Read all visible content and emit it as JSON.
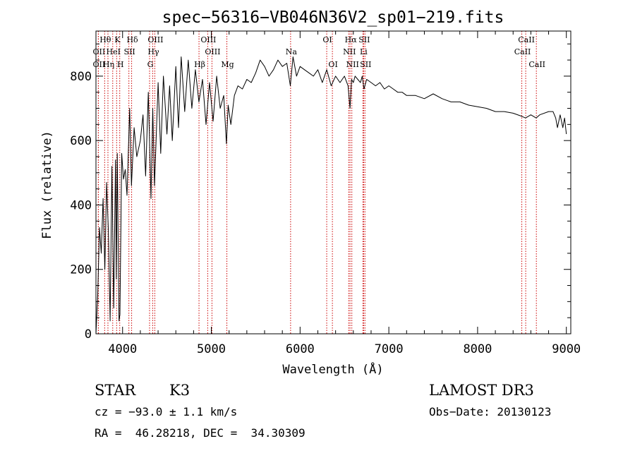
{
  "chart_data": {
    "type": "line",
    "title": "spec−56316−VB046N36V2_sp01−219.fits",
    "xlabel": "Wavelength (Å)",
    "ylabel": "Flux (relative)",
    "xlim": [
      3700,
      9050
    ],
    "ylim": [
      0,
      940
    ],
    "xticks": [
      {
        "value": 4000,
        "label": "4000"
      },
      {
        "value": 5000,
        "label": "5000"
      },
      {
        "value": 6000,
        "label": "6000"
      },
      {
        "value": 7000,
        "label": "7000"
      },
      {
        "value": 8000,
        "label": "8000"
      },
      {
        "value": 9000,
        "label": "9000"
      }
    ],
    "yticks": [
      {
        "value": 0,
        "label": "0"
      },
      {
        "value": 200,
        "label": "200"
      },
      {
        "value": 400,
        "label": "400"
      },
      {
        "value": 600,
        "label": "600"
      },
      {
        "value": 800,
        "label": "800"
      }
    ],
    "grid": false,
    "series": [
      {
        "name": "flux",
        "x": [
          3700,
          3720,
          3740,
          3760,
          3780,
          3800,
          3820,
          3840,
          3860,
          3880,
          3900,
          3920,
          3930,
          3940,
          3960,
          3970,
          3990,
          4010,
          4030,
          4050,
          4080,
          4100,
          4130,
          4160,
          4200,
          4230,
          4260,
          4290,
          4320,
          4340,
          4360,
          4400,
          4430,
          4460,
          4500,
          4530,
          4560,
          4600,
          4630,
          4660,
          4700,
          4740,
          4780,
          4820,
          4860,
          4900,
          4940,
          4980,
          5020,
          5060,
          5100,
          5140,
          5170,
          5190,
          5220,
          5260,
          5300,
          5350,
          5400,
          5450,
          5500,
          5550,
          5600,
          5650,
          5700,
          5750,
          5800,
          5850,
          5890,
          5920,
          5960,
          6000,
          6050,
          6100,
          6150,
          6200,
          6250,
          6300,
          6350,
          6400,
          6450,
          6500,
          6540,
          6563,
          6580,
          6600,
          6620,
          6650,
          6680,
          6700,
          6720,
          6750,
          6800,
          6850,
          6900,
          6950,
          7000,
          7050,
          7100,
          7150,
          7200,
          7300,
          7400,
          7500,
          7600,
          7700,
          7800,
          7900,
          8000,
          8100,
          8200,
          8300,
          8400,
          8500,
          8540,
          8600,
          8660,
          8700,
          8800,
          8850,
          8880,
          8900,
          8930,
          8960,
          8980,
          9000
        ],
        "y": [
          0,
          120,
          330,
          250,
          420,
          200,
          470,
          320,
          40,
          520,
          80,
          540,
          170,
          560,
          40,
          60,
          560,
          480,
          510,
          430,
          700,
          460,
          640,
          550,
          600,
          680,
          490,
          750,
          420,
          700,
          460,
          780,
          560,
          800,
          620,
          770,
          600,
          830,
          640,
          860,
          690,
          850,
          700,
          820,
          720,
          790,
          650,
          780,
          660,
          800,
          700,
          740,
          590,
          710,
          650,
          740,
          770,
          760,
          790,
          780,
          810,
          850,
          830,
          800,
          820,
          850,
          830,
          840,
          770,
          860,
          800,
          830,
          820,
          810,
          800,
          820,
          780,
          820,
          770,
          800,
          780,
          800,
          770,
          700,
          790,
          780,
          800,
          790,
          780,
          800,
          760,
          790,
          780,
          770,
          780,
          760,
          770,
          760,
          750,
          750,
          740,
          740,
          730,
          745,
          730,
          720,
          720,
          710,
          705,
          700,
          690,
          690,
          685,
          675,
          670,
          680,
          670,
          680,
          690,
          690,
          670,
          640,
          680,
          640,
          670,
          620
        ]
      }
    ],
    "spectral_lines": [
      {
        "label": "Hθ",
        "wavelength": 3798,
        "row": 0
      },
      {
        "label": "OII",
        "wavelength": 3727,
        "row": 1
      },
      {
        "label": "OII",
        "wavelength": 3727,
        "row": 2
      },
      {
        "label": "Hη",
        "wavelength": 3835,
        "row": 2
      },
      {
        "label": "HeI",
        "wavelength": 3889,
        "row": 1
      },
      {
        "label": "K",
        "wavelength": 3933,
        "row": 0
      },
      {
        "label": "H",
        "wavelength": 3968,
        "row": 2
      },
      {
        "label": "SII",
        "wavelength": 4071,
        "row": 1
      },
      {
        "label": "Hδ",
        "wavelength": 4102,
        "row": 0
      },
      {
        "label": "OIII",
        "wavelength": 4363,
        "row": 0
      },
      {
        "label": "Hγ",
        "wavelength": 4340,
        "row": 1
      },
      {
        "label": "G",
        "wavelength": 4304,
        "row": 2
      },
      {
        "label": "OIII",
        "wavelength": 4959,
        "row": 0
      },
      {
        "label": "OIII",
        "wavelength": 5007,
        "row": 1
      },
      {
        "label": "Hβ",
        "wavelength": 4861,
        "row": 2
      },
      {
        "label": "Mg",
        "wavelength": 5175,
        "row": 2
      },
      {
        "label": "Na",
        "wavelength": 5893,
        "row": 1
      },
      {
        "label": "OI",
        "wavelength": 6300,
        "row": 0
      },
      {
        "label": "OI",
        "wavelength": 6364,
        "row": 2
      },
      {
        "label": "Hα",
        "wavelength": 6563,
        "row": 0
      },
      {
        "label": "SII",
        "wavelength": 6716,
        "row": 0
      },
      {
        "label": "NII",
        "wavelength": 6548,
        "row": 1
      },
      {
        "label": "Li",
        "wavelength": 6708,
        "row": 1
      },
      {
        "label": "NII",
        "wavelength": 6583,
        "row": 2
      },
      {
        "label": "SII",
        "wavelength": 6731,
        "row": 2
      },
      {
        "label": "CaII",
        "wavelength": 8542,
        "row": 0
      },
      {
        "label": "CaII",
        "wavelength": 8498,
        "row": 1
      },
      {
        "label": "CaII",
        "wavelength": 8662,
        "row": 2
      }
    ]
  },
  "info": {
    "object_type": "STAR",
    "subclass": "K3",
    "survey": "LAMOST DR3",
    "redshift": "cz = −93.0 ± 1.1 km/s",
    "obs_date": "Obs−Date: 20130123",
    "coords": "RA =  46.28218, DEC =  34.30309"
  },
  "colors": {
    "spectrum": "#000000",
    "line_marker": "#cc0000",
    "background": "#ffffff"
  }
}
